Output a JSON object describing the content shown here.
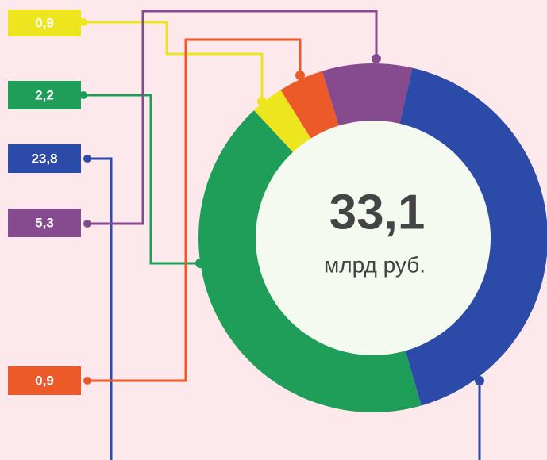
{
  "labels": [
    "0,9",
    "2,2",
    "23,8",
    "5,3",
    "0,9"
  ],
  "total": "33,1",
  "unit": "млрд руб."
}
